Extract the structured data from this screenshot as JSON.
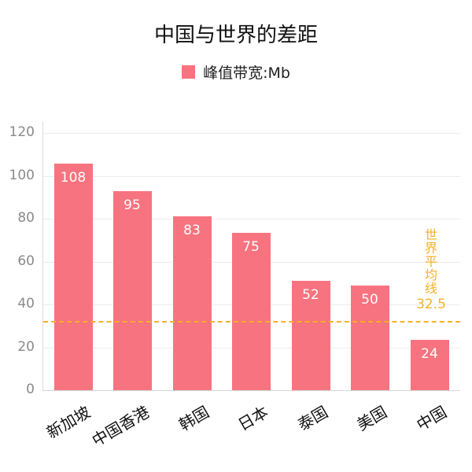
{
  "title": "中国与世界的差距",
  "legend": {
    "label": "峰值带宽:Mb",
    "color": "#f7737f"
  },
  "average": {
    "label_chars": [
      "世",
      "界",
      "平",
      "均",
      "线"
    ],
    "value_label": "32.5",
    "color": "#f6b026"
  },
  "colors": {
    "bar": "#f7737f",
    "avg": "#f6b026",
    "tick": "#8a8a8a",
    "grid": "#ececec"
  },
  "chart_data": {
    "type": "bar",
    "title": "中国与世界的差距",
    "categories": [
      "新加坡",
      "中国香港",
      "韩国",
      "日本",
      "泰国",
      "美国",
      "中国"
    ],
    "series": [
      {
        "name": "峰值带宽:Mb",
        "values": [
          108,
          95,
          83,
          75,
          52,
          50,
          24
        ]
      }
    ],
    "annotations": [
      {
        "type": "hline",
        "value": 32.5,
        "label": "世界平均线 32.5",
        "style": "dashed",
        "color": "#f6b026"
      }
    ],
    "xlabel": "",
    "ylabel": "",
    "ylim": [
      0,
      120
    ],
    "yticks": [
      0,
      20,
      40,
      60,
      80,
      100,
      120
    ],
    "grid": true,
    "legend_position": "top"
  },
  "yticks": [
    "0",
    "20",
    "40",
    "60",
    "80",
    "100",
    "120"
  ],
  "bars": [
    {
      "label": "新加坡",
      "value": "108"
    },
    {
      "label": "中国香港",
      "value": "95"
    },
    {
      "label": "韩国",
      "value": "83"
    },
    {
      "label": "日本",
      "value": "75"
    },
    {
      "label": "泰国",
      "value": "52"
    },
    {
      "label": "美国",
      "value": "50"
    },
    {
      "label": "中国",
      "value": "24"
    }
  ]
}
